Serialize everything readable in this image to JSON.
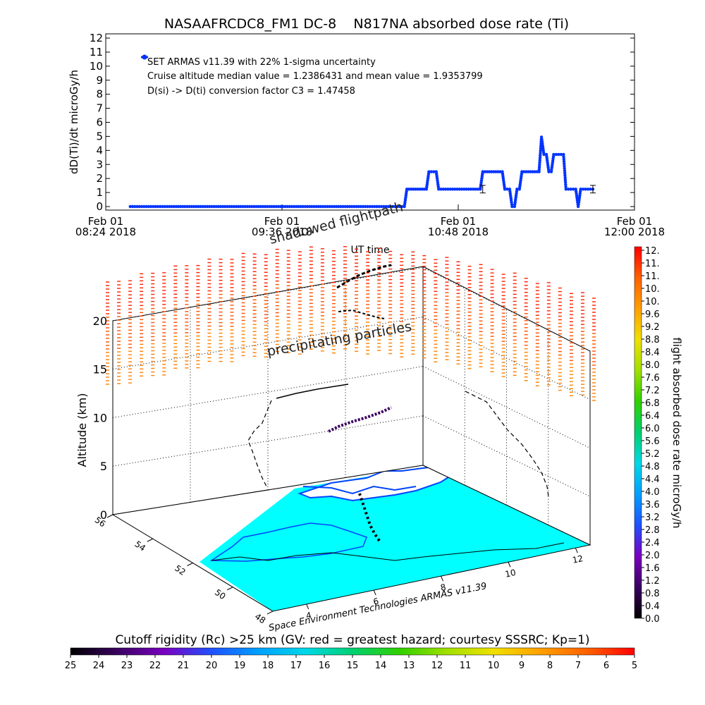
{
  "colors": {
    "series": "#0033ff",
    "ocean": "#00ffff",
    "land": "#ffffff",
    "shore": "#0055ff",
    "axis": "#000000"
  },
  "colorbar_stops": [
    "#000000",
    "#3a0060",
    "#7a00c0",
    "#2050ff",
    "#00a0ff",
    "#00d8e8",
    "#00d070",
    "#30d000",
    "#a0e000",
    "#f0e000",
    "#ffa000",
    "#ff6000",
    "#ff0000"
  ],
  "chart_data": [
    {
      "type": "line",
      "title": "NASAAFRCDC8_FM1 DC-8    N817NA absorbed dose rate (Ti)",
      "ylabel": "dD(Ti)/dt microGy/h",
      "xlabel": "UT time",
      "ylim": [
        0,
        12
      ],
      "yticks": [
        "0",
        "1",
        "2",
        "3",
        "4",
        "5",
        "6",
        "7",
        "8",
        "9",
        "10",
        "11",
        "12"
      ],
      "xlim": [
        "2018-02-01T08:24",
        "2018-02-01T12:00"
      ],
      "xticks": [
        {
          "line1": "Feb 01",
          "line2": "08:24 2018"
        },
        {
          "line1": "Feb 01",
          "line2": "09:36 2018"
        },
        {
          "line1": "Feb 01",
          "line2": "10:48 2018"
        },
        {
          "line1": "Feb 01",
          "line2": "12:00 2018"
        }
      ],
      "legend": {
        "series_name": "SET ARMAS v11.39 with 22% 1-sigma uncertainty",
        "line2": "Cruise altitude median value = 1.2386431 and mean value = 1.9353799",
        "line3": "D(si) -> D(ti) conversion factor C3 = 1.47458"
      },
      "series": [
        {
          "name": "SET ARMAS v11.39 with 22% 1-sigma uncertainty",
          "points": [
            [
              "08:34",
              0
            ],
            [
              "08:50",
              0
            ],
            [
              "09:10",
              0
            ],
            [
              "09:30",
              0
            ],
            [
              "09:50",
              0
            ],
            [
              "10:10",
              0
            ],
            [
              "10:26",
              0
            ],
            [
              "10:27",
              1.24
            ],
            [
              "10:35",
              1.24
            ],
            [
              "10:36",
              2.48
            ],
            [
              "10:39",
              2.48
            ],
            [
              "10:40",
              1.24
            ],
            [
              "10:57",
              1.24
            ],
            [
              "10:58",
              2.48
            ],
            [
              "11:06",
              2.48
            ],
            [
              "11:07",
              1.24
            ],
            [
              "11:09",
              1.24
            ],
            [
              "11:10",
              0
            ],
            [
              "11:11",
              0
            ],
            [
              "11:12",
              1.24
            ],
            [
              "11:13",
              1.24
            ],
            [
              "11:14",
              2.48
            ],
            [
              "11:21",
              2.48
            ],
            [
              "11:22",
              4.95
            ],
            [
              "11:23",
              3.71
            ],
            [
              "11:24",
              3.71
            ],
            [
              "11:25",
              2.48
            ],
            [
              "11:26",
              2.48
            ],
            [
              "11:27",
              3.71
            ],
            [
              "11:31",
              3.71
            ],
            [
              "11:32",
              1.24
            ],
            [
              "11:36",
              1.24
            ],
            [
              "11:37",
              0
            ],
            [
              "11:38",
              1.24
            ],
            [
              "11:43",
              1.24
            ]
          ],
          "error_bars": [
            {
              "x": "10:58",
              "y": 1.24,
              "err": 0.27
            },
            {
              "x": "11:43",
              "y": 1.24,
              "err": 0.27
            }
          ]
        }
      ]
    },
    {
      "type": "scatter",
      "subtype": "3d flight path with map",
      "zlabel": "Altitude (km)",
      "zticks": [
        "0",
        "5",
        "10",
        "15",
        "20"
      ],
      "lat_ticks": [
        "48",
        "50",
        "52",
        "54",
        "56"
      ],
      "lon_ticks": [
        "4",
        "6",
        "8",
        "10",
        "12"
      ],
      "annotations": [
        "shadowed flightpath",
        "precipitating particles"
      ],
      "credit": "Space Environment Technologies ARMAS v11.39"
    },
    {
      "type": "heatmap",
      "subtype": "vertical colorbar",
      "label": "flight absorbed dose rate microGy/h",
      "ticks": [
        "12.",
        "11.",
        "11.",
        "10.",
        "10.",
        "9.6",
        "9.2",
        "8.8",
        "8.4",
        "8.0",
        "7.6",
        "7.2",
        "6.8",
        "6.4",
        "6.0",
        "5.6",
        "5.2",
        "4.8",
        "4.4",
        "4.0",
        "3.6",
        "3.2",
        "2.8",
        "2.4",
        "2.0",
        "1.6",
        "1.2",
        "0.8",
        "0.4",
        "0.0"
      ]
    },
    {
      "type": "heatmap",
      "subtype": "horizontal colorbar",
      "title": "Cutoff rigidity (Rc) >25 km (GV: red = greatest hazard; courtesy SSSRC; Kp=1)",
      "ticks": [
        "25",
        "24",
        "23",
        "22",
        "21",
        "20",
        "19",
        "18",
        "17",
        "16",
        "15",
        "14",
        "13",
        "12",
        "11",
        "10",
        "9",
        "8",
        "7",
        "6",
        "5"
      ]
    }
  ]
}
